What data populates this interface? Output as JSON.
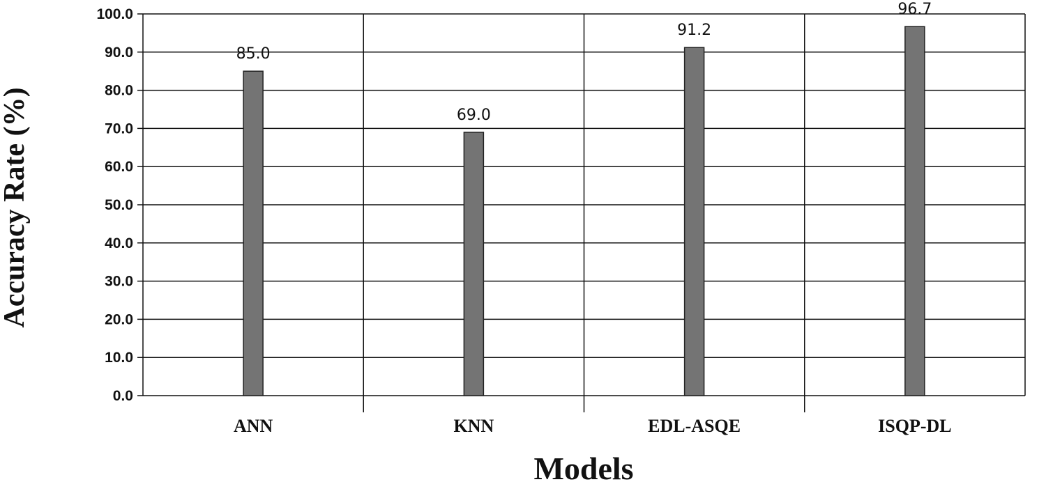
{
  "chart_data": {
    "type": "bar",
    "title": "",
    "xlabel": "Models",
    "ylabel": "Accuracy Rate (%)",
    "categories": [
      "ANN",
      "KNN",
      "EDL-ASQE",
      "ISQP-DL"
    ],
    "values": [
      85.0,
      69.0,
      91.2,
      96.7
    ],
    "value_labels": [
      "85.0",
      "69.0",
      "91.2",
      "96.7"
    ],
    "ylim": [
      0,
      100
    ],
    "yticks": [
      "0.0",
      "10.0",
      "20.0",
      "30.0",
      "40.0",
      "50.0",
      "60.0",
      "70.0",
      "80.0",
      "90.0",
      "100.0"
    ],
    "grid": true,
    "legend": "none",
    "bar_color": "#747474"
  }
}
